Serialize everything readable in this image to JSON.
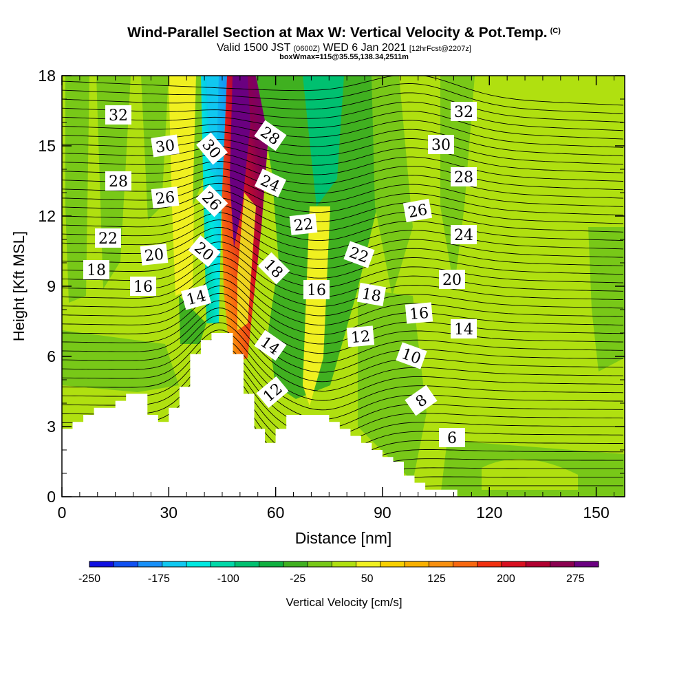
{
  "title": {
    "main": "Wind-Parallel Section at Max W: Vertical Velocity & Pot.Temp.",
    "copyright": "(C)",
    "valid_prefix": "Valid 1500 JST",
    "valid_utc": "(0600Z)",
    "valid_date": "WED 6 Jan 2021",
    "forecast": "[12hrFcst@2207z]",
    "boxinfo": "boxWmax=115@35.55,138.34,2511m"
  },
  "chart_data": {
    "type": "heatmap",
    "xlabel": "Distance [nm]",
    "ylabel": "Height [Kft MSL]",
    "xlim": [
      0,
      158
    ],
    "ylim": [
      0,
      18
    ],
    "x_ticks": [
      0,
      30,
      60,
      90,
      120,
      150
    ],
    "y_ticks": [
      0,
      3,
      6,
      9,
      12,
      15,
      18
    ],
    "colorbar": {
      "label": "Vertical Velocity [cm/s]",
      "tick_labels": [
        "-250",
        "-175",
        "-100",
        "-25",
        "50",
        "125",
        "200",
        "275"
      ],
      "tick_values": [
        -250,
        -175,
        -100,
        -25,
        50,
        125,
        200,
        275
      ],
      "range": [
        -250,
        300
      ],
      "colors": [
        "#1010e0",
        "#1050f0",
        "#1890f8",
        "#10c8f0",
        "#00e8e0",
        "#00d8a8",
        "#00c070",
        "#10b040",
        "#40b020",
        "#78c818",
        "#b0e010",
        "#f0f020",
        "#f8d000",
        "#f8b000",
        "#f89010",
        "#f86810",
        "#f03010",
        "#d81020",
        "#b00030",
        "#8a0050",
        "#6a0080"
      ]
    },
    "field_labels": {
      "units": "Potential temperature contours (C)",
      "values": [
        "32",
        "30",
        "28",
        "26",
        "22",
        "20",
        "18",
        "16",
        "14",
        "30",
        "26",
        "20",
        "28",
        "24",
        "18",
        "14",
        "12",
        "22",
        "16",
        "22",
        "18",
        "12",
        "10",
        "8",
        "6",
        "32",
        "30",
        "28",
        "26",
        "24",
        "20",
        "16",
        "14"
      ]
    },
    "terrain_profile": {
      "distance_nm": [
        0,
        3,
        6,
        9,
        12,
        15,
        18,
        21,
        24,
        27,
        30,
        33,
        36,
        39,
        42,
        45,
        48,
        51,
        54,
        57,
        60,
        63,
        66,
        69,
        72,
        75,
        78,
        81,
        84,
        87,
        90,
        93,
        96,
        99,
        102,
        105,
        108
      ],
      "height_kft": [
        2.9,
        3.2,
        3.5,
        3.8,
        3.8,
        4.1,
        4.4,
        4.4,
        3.5,
        3.2,
        3.8,
        4.7,
        6.1,
        6.7,
        7.0,
        7.0,
        6.1,
        4.4,
        2.9,
        2.3,
        2.9,
        3.5,
        3.5,
        3.5,
        3.5,
        3.2,
        2.9,
        2.6,
        2.3,
        2.0,
        1.7,
        1.5,
        0.9,
        0.6,
        0.3,
        0.3,
        0.3
      ]
    }
  }
}
